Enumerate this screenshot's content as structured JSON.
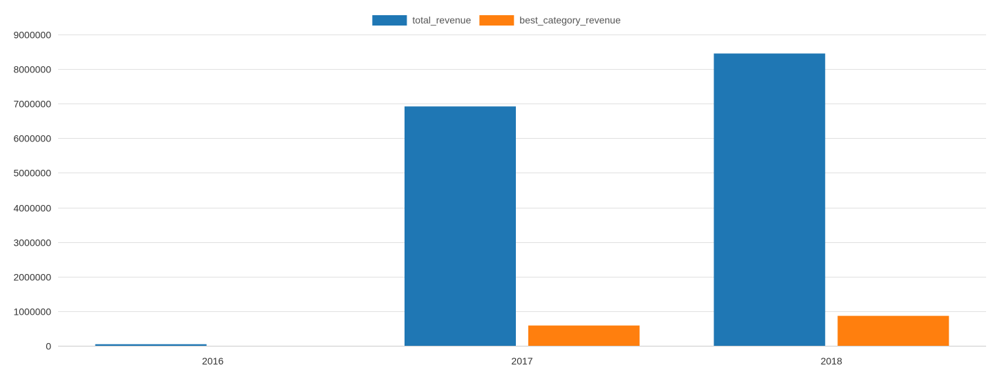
{
  "chart_data": {
    "type": "bar",
    "title": "",
    "xlabel": "",
    "ylabel": "",
    "categories": [
      "2016",
      "2017",
      "2018"
    ],
    "series": [
      {
        "name": "total_revenue",
        "color": "#1f77b4",
        "values": [
          46653,
          6921535,
          8451584
        ]
      },
      {
        "name": "best_category_revenue",
        "color": "#ff7f0e",
        "values": [
          0,
          587000,
          866000
        ]
      }
    ],
    "ylim": [
      0,
      9000000
    ],
    "yticks": [
      "0",
      "1000000",
      "2000000",
      "3000000",
      "4000000",
      "5000000",
      "6000000",
      "7000000",
      "8000000",
      "9000000"
    ],
    "grid": true,
    "legend_position": "top-center"
  }
}
